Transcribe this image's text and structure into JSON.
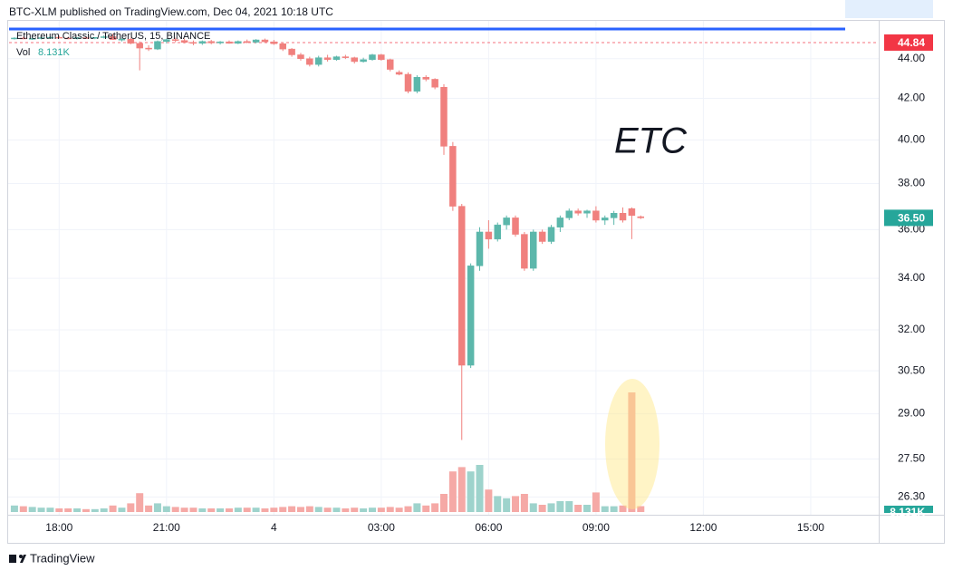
{
  "header": "BTC-XLM published on TradingView.com, Dec 04, 2021 10:18 UTC",
  "footer": "TradingView",
  "chart_data": {
    "type": "candlestick",
    "title": "Ethereum Classic / TetherUS, 15, BINANCE",
    "annotation": "ETC",
    "log_scale": true,
    "grid": true,
    "up_color": "#5cb7ab",
    "down_color": "#f0807e",
    "xlim": [
      16.6,
      40.9
    ],
    "xticks": [
      {
        "value": 18,
        "label": "18:00"
      },
      {
        "value": 21,
        "label": "21:00"
      },
      {
        "value": 24,
        "label": "4"
      },
      {
        "value": 27,
        "label": "03:00"
      },
      {
        "value": 30,
        "label": "06:00"
      },
      {
        "value": 33,
        "label": "09:00"
      },
      {
        "value": 36,
        "label": "12:00"
      },
      {
        "value": 39,
        "label": "15:00"
      }
    ],
    "ylim": [
      25.84,
      45.56
    ],
    "yticks": [
      {
        "value": 44,
        "label": "44.00"
      },
      {
        "value": 42,
        "label": "42.00"
      },
      {
        "value": 40,
        "label": "40.00"
      },
      {
        "value": 38,
        "label": "38.00"
      },
      {
        "value": 36,
        "label": "36.00"
      },
      {
        "value": 34,
        "label": "34.00"
      },
      {
        "value": 32,
        "label": "32.00"
      },
      {
        "value": 30.5,
        "label": "30.50"
      },
      {
        "value": 29,
        "label": "29.00"
      },
      {
        "value": 27.5,
        "label": "27.50"
      },
      {
        "value": 26.3,
        "label": "26.30"
      }
    ],
    "prev_line": {
      "value": 44.84,
      "color": "#f23645"
    },
    "last_price": {
      "value": 36.5,
      "label": "36.50",
      "color": "#26a69a"
    },
    "low": [
      45,
      45.02,
      44.98,
      45.01,
      45.05,
      45.06,
      45.02,
      45,
      45.04,
      45.02,
      45.06,
      45.08,
      44.9,
      44.75,
      43.4,
      44.4,
      44.45,
      44.8,
      44.85,
      44.8,
      44.7,
      44.72,
      44.75,
      44.74,
      44.78,
      44.76,
      44.8,
      44.8,
      44.85,
      44.72,
      44.4,
      44.1,
      43.9,
      43.6,
      43.6,
      43.85,
      43.9,
      43.98,
      43.75,
      43.8,
      43.9,
      43.9,
      43.35,
      43.15,
      42.25,
      42.25,
      42.85,
      42.45,
      39.3,
      36.8,
      28.12,
      30.6,
      34.3,
      35.2,
      35.5,
      36,
      35.7,
      34.3,
      34.3,
      35.4,
      35.4,
      35.9,
      36.4,
      36.6,
      36.5,
      36.3,
      36.2,
      36.2,
      36.3,
      35.6,
      36.45
    ],
    "x": [
      16.75,
      17,
      17.25,
      17.5,
      17.75,
      18,
      18.25,
      18.5,
      18.75,
      19,
      19.25,
      19.5,
      19.75,
      20,
      20.25,
      20.5,
      20.75,
      21,
      21.25,
      21.5,
      21.75,
      22,
      22.25,
      22.5,
      22.75,
      23,
      23.25,
      23.5,
      23.75,
      24,
      24.25,
      24.5,
      24.75,
      25,
      25.25,
      25.5,
      25.75,
      26,
      26.25,
      26.5,
      26.75,
      27,
      27.25,
      27.5,
      27.75,
      28,
      28.25,
      28.5,
      28.75,
      29,
      29.25,
      29.5,
      29.75,
      30,
      30.25,
      30.5,
      30.75,
      31,
      31.25,
      31.5,
      31.75,
      32,
      32.25,
      32.5,
      32.75,
      33,
      33.25,
      33.5,
      33.75,
      34,
      34.25
    ],
    "open": [
      45.05,
      45.08,
      45.04,
      45.06,
      45.1,
      45.12,
      45.08,
      45.05,
      45.1,
      45.07,
      45.11,
      45.15,
      45,
      45.02,
      44.8,
      44.55,
      44.5,
      44.9,
      45,
      44.95,
      44.85,
      44.8,
      44.9,
      44.82,
      44.88,
      44.8,
      44.9,
      44.86,
      44.98,
      44.88,
      44.78,
      44.5,
      44.2,
      44,
      43.7,
      44.05,
      43.95,
      44.1,
      44.05,
      43.85,
      43.95,
      44.2,
      43.95,
      43.3,
      43.2,
      42.35,
      43.05,
      42.95,
      42.55,
      39.7,
      37,
      30.7,
      34.5,
      35.9,
      35.6,
      36.2,
      36.5,
      35.8,
      34.4,
      35.9,
      35.5,
      36.1,
      36.5,
      36.8,
      36.7,
      36.8,
      36.4,
      36.5,
      36.7,
      36.9,
      36.55
    ],
    "high": [
      45.12,
      45.15,
      45.1,
      45.14,
      45.18,
      45.2,
      45.14,
      45.12,
      45.16,
      45.13,
      45.22,
      45.3,
      45.1,
      45.1,
      44.9,
      44.7,
      44.95,
      45.05,
      45.1,
      45.05,
      44.95,
      44.95,
      44.98,
      44.92,
      44.95,
      44.95,
      45,
      45.02,
      45.05,
      44.98,
      44.85,
      44.55,
      44.3,
      44.1,
      44.15,
      44.2,
      44.15,
      44.2,
      44.1,
      44.05,
      44.25,
      44.25,
      44,
      43.4,
      43.3,
      43.15,
      43.15,
      43,
      42.7,
      39.9,
      37.1,
      34.6,
      36.1,
      36.4,
      36.3,
      36.6,
      36.6,
      35.9,
      36,
      36,
      36.2,
      36.6,
      36.9,
      36.9,
      36.85,
      37,
      36.6,
      36.8,
      36.95,
      36.95,
      36.6
    ],
    "close": [
      45.08,
      45.04,
      45.06,
      45.1,
      45.12,
      45.08,
      45.05,
      45.1,
      45.07,
      45.11,
      45.15,
      45,
      45.02,
      44.8,
      44.55,
      44.5,
      44.9,
      45,
      44.95,
      44.85,
      44.8,
      44.9,
      44.82,
      44.88,
      44.8,
      44.9,
      44.86,
      44.98,
      44.88,
      44.78,
      44.5,
      44.2,
      44,
      43.7,
      44.05,
      43.95,
      44.1,
      44.05,
      43.85,
      43.95,
      44.2,
      43.95,
      43.45,
      43.2,
      42.35,
      43.05,
      42.95,
      42.55,
      39.7,
      37,
      30.7,
      34.5,
      35.9,
      35.6,
      36.2,
      36.5,
      35.8,
      34.4,
      35.9,
      35.5,
      36.1,
      36.5,
      36.8,
      36.7,
      36.8,
      36.4,
      36.5,
      36.7,
      36.4,
      36.6,
      36.5
    ],
    "volume": {
      "name": "Vol",
      "last_label": "8.131K",
      "vlim": [
        0,
        200000
      ],
      "up_color": "#9ed3cc",
      "down_color": "#f5a9a6",
      "values": [
        9000,
        8000,
        7000,
        6000,
        6000,
        5000,
        5000,
        5000,
        4000,
        4000,
        5000,
        9000,
        6000,
        12000,
        26000,
        9000,
        12000,
        8000,
        7000,
        6000,
        6000,
        5000,
        5000,
        5000,
        5000,
        6000,
        6000,
        6000,
        5000,
        6000,
        7000,
        8000,
        7000,
        8000,
        7000,
        6000,
        6000,
        5000,
        6000,
        5000,
        6000,
        6000,
        7000,
        6000,
        8000,
        12000,
        9000,
        12000,
        25000,
        56000,
        62000,
        56000,
        65000,
        31000,
        22000,
        19000,
        22000,
        25000,
        12000,
        10000,
        12000,
        15000,
        15000,
        10000,
        10000,
        27000,
        8000,
        8000,
        9000,
        165000,
        8131
      ]
    }
  }
}
